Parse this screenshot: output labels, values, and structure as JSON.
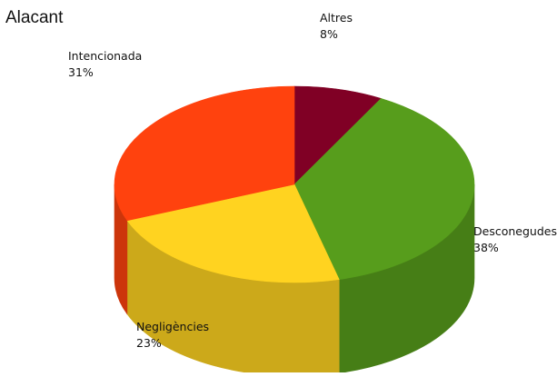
{
  "chart_data": {
    "type": "pie",
    "title": "Alacant",
    "style": "3d",
    "slices": [
      {
        "label": "Altres",
        "value": 8,
        "percent_text": "8%",
        "color": "#800025"
      },
      {
        "label": "Desconegudes",
        "value": 38,
        "percent_text": "38%",
        "color": "#579D1C"
      },
      {
        "label": "Negligències",
        "value": 23,
        "percent_text": "23%",
        "color": "#FFD320"
      },
      {
        "label": "Intencionada",
        "value": 31,
        "percent_text": "31%",
        "color": "#FF420E"
      }
    ]
  }
}
